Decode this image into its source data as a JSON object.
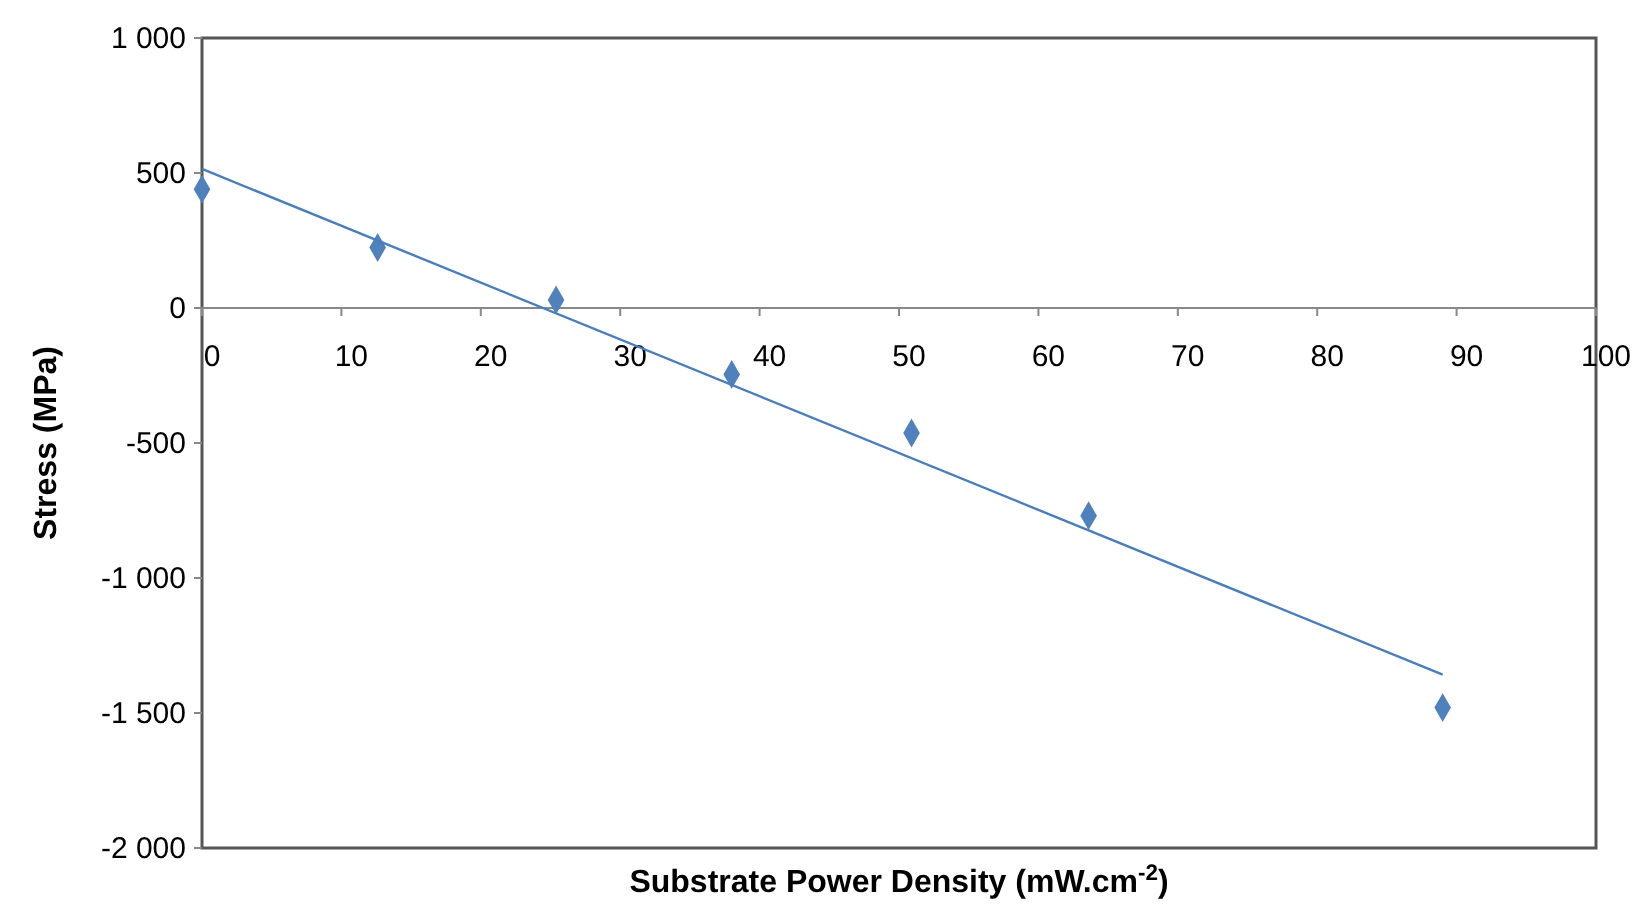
{
  "chart_data": {
    "type": "scatter",
    "xlabel": "Substrate Power Density (mW.cm$^{-2}$)",
    "ylabel": "Stress (MPa)",
    "xlim": [
      0,
      100
    ],
    "xticks": [
      0,
      10,
      20,
      30,
      40,
      50,
      60,
      70,
      80,
      90,
      100
    ],
    "ylim": [
      -2000,
      1000
    ],
    "yticks": [
      {
        "value": -2000,
        "label": "-2 000"
      },
      {
        "value": -1500,
        "label": "-1 500"
      },
      {
        "value": -1000,
        "label": "-1 000"
      },
      -500,
      0,
      500,
      {
        "value": 1000,
        "label": "1 000"
      }
    ],
    "grid": false,
    "series": [
      {
        "marker": "diamond",
        "color": "#4f81bd",
        "x": [
          0,
          12.6,
          25.4,
          38,
          50.9,
          63.6,
          89
        ],
        "values": [
          440,
          224,
          30,
          -246,
          -463,
          -769,
          -1480
        ]
      },
      {
        "type": "line",
        "marker": "none",
        "color": "#4a7ebb",
        "x": [
          0,
          89
        ],
        "values": [
          515,
          -1358
        ]
      }
    ]
  }
}
